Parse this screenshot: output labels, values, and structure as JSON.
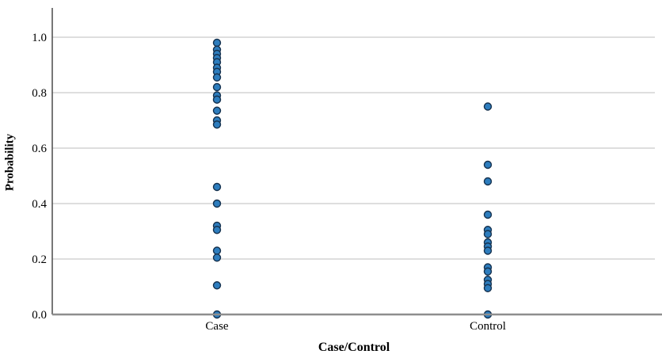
{
  "chart_data": {
    "type": "scatter",
    "title": "",
    "xlabel": "Case/Control",
    "ylabel": "Probability",
    "categories": [
      "Case",
      "Control"
    ],
    "ytick_labels": [
      "0.0",
      "0.2",
      "0.4",
      "0.6",
      "0.8",
      "1.0"
    ],
    "yticks": [
      0.0,
      0.2,
      0.4,
      0.6,
      0.8,
      1.0
    ],
    "ylim": [
      0.0,
      1.05
    ],
    "grid": "horizontal",
    "legend": "none",
    "series": [
      {
        "name": "Case",
        "values": [
          0.98,
          0.955,
          0.94,
          0.925,
          0.91,
          0.89,
          0.875,
          0.855,
          0.82,
          0.79,
          0.775,
          0.735,
          0.7,
          0.685,
          0.46,
          0.4,
          0.32,
          0.305,
          0.23,
          0.205,
          0.105,
          0.0
        ]
      },
      {
        "name": "Control",
        "values": [
          0.75,
          0.54,
          0.48,
          0.36,
          0.305,
          0.29,
          0.26,
          0.245,
          0.23,
          0.17,
          0.155,
          0.125,
          0.11,
          0.095,
          0.0
        ]
      }
    ],
    "colors": {
      "marker_fill": "#2d7dbe",
      "marker_stroke": "#16324f",
      "gridline": "#d4d4d4",
      "x_axis_line": "#8e8e8e",
      "y_axis_line": "#4a4a4a",
      "text": "#000000",
      "background": "#ffffff"
    }
  }
}
